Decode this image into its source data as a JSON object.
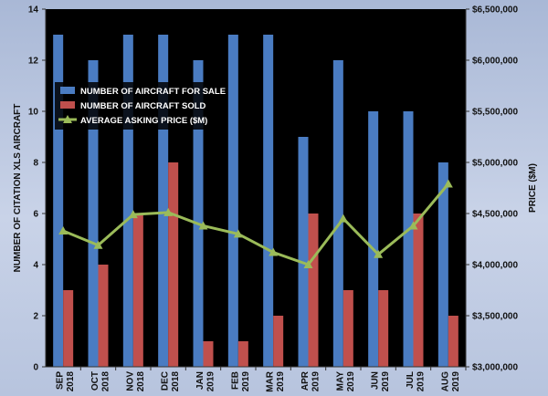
{
  "chart_data": {
    "type": "bar",
    "categories": [
      [
        "SEP",
        "2018"
      ],
      [
        "OCT",
        "2018"
      ],
      [
        "NOV",
        "2018"
      ],
      [
        "DEC",
        "2018"
      ],
      [
        "JAN",
        "2019"
      ],
      [
        "FEB",
        "2019"
      ],
      [
        "MAR",
        "2019"
      ],
      [
        "APR",
        "2019"
      ],
      [
        "MAY",
        "2019"
      ],
      [
        "JUN",
        "2019"
      ],
      [
        "JUL",
        "2019"
      ],
      [
        "AUG",
        "2019"
      ]
    ],
    "series": [
      {
        "name": "NUMBER OF AIRCRAFT FOR SALE",
        "type": "bar",
        "axis": "left",
        "color": "#4a7cc2",
        "values": [
          13,
          12,
          13,
          13,
          12,
          13,
          13,
          9,
          12,
          10,
          10,
          8
        ]
      },
      {
        "name": "NUMBER OF AIRCRAFT SOLD",
        "type": "bar",
        "axis": "left",
        "color": "#c0504d",
        "values": [
          3,
          4,
          6,
          8,
          1,
          1,
          2,
          6,
          3,
          3,
          6,
          2
        ]
      },
      {
        "name": "AVERAGE ASKING PRICE ($M)",
        "type": "line",
        "axis": "right",
        "color": "#9bbb59",
        "values": [
          4330000,
          4190000,
          4490000,
          4510000,
          4380000,
          4300000,
          4120000,
          4000000,
          4450000,
          4100000,
          4380000,
          4790000
        ]
      }
    ],
    "ylabel": "NUMBER OF CITATION XLS  AIRCRAFT",
    "y2label": "PRICE ($M)",
    "ylim": [
      0,
      14
    ],
    "yticks": [
      "0",
      "2",
      "4",
      "6",
      "8",
      "10",
      "12",
      "14"
    ],
    "y2lim": [
      3000000,
      6500000
    ],
    "y2ticks": [
      "$3,000,000",
      "$3,500,000",
      "$4,000,000",
      "$4,500,000",
      "$5,000,000",
      "$5,500,000",
      "$6,000,000",
      "$6,500,000"
    ],
    "legend_position": "left-center",
    "grid": false,
    "plot_background": "#000000"
  }
}
